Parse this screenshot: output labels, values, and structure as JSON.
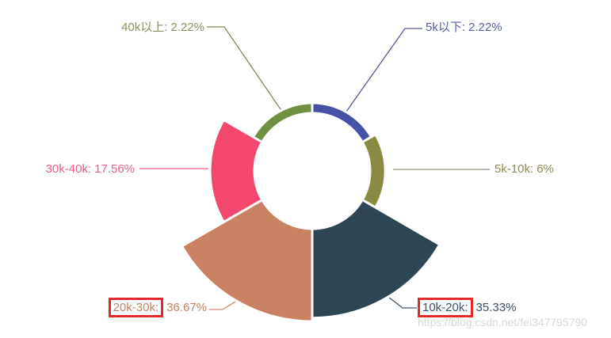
{
  "watermark": "https://blog.csdn.net/fei347795790",
  "annotations": {
    "red_box_color": "#e12a2a",
    "boxed_labels": [
      "10k-20k:",
      "20k-30k:"
    ]
  },
  "chart_data": {
    "type": "pie",
    "variant": "nightingale-rose (equal 60° sectors clockwise from top, outer radius proportional to value)",
    "title": "",
    "legend": "none",
    "inner_radius_px": 73,
    "max_radius_px": 190,
    "categories": [
      "5k以下",
      "5k-10k",
      "10k-20k",
      "20k-30k",
      "30k-40k",
      "40k以上"
    ],
    "values": [
      2.22,
      6,
      35.33,
      36.67,
      17.56,
      2.22
    ],
    "segments": [
      {
        "id": "5k-below",
        "name": "5k以下",
        "value": 2.22,
        "label_name": "5k以下:",
        "label_value": "2.22%",
        "color": "#4751a8",
        "label_color": "#5b5f9e",
        "line_color": "#575b9d",
        "boxed": false
      },
      {
        "id": "5k-10k",
        "name": "5k-10k",
        "value": 6,
        "label_name": "5k-10k:",
        "label_value": "6%",
        "color": "#8b8a42",
        "label_color": "#8e8c55",
        "line_color": "#94917b",
        "boxed": false
      },
      {
        "id": "10k-20k",
        "name": "10k-20k",
        "value": 35.33,
        "label_name": "10k-20k:",
        "label_value": "35.33%",
        "color": "#2e4554",
        "label_color": "#3c5164",
        "line_color": "#42566a",
        "boxed": true
      },
      {
        "id": "20k-30k",
        "name": "20k-30k",
        "value": 36.67,
        "label_name": "20k-30k:",
        "label_value": "36.67%",
        "color": "#cb8263",
        "label_color": "#c08367",
        "line_color": "#c88e70",
        "boxed": true
      },
      {
        "id": "30k-40k",
        "name": "30k-40k",
        "value": 17.56,
        "label_name": "30k-40k:",
        "label_value": "17.56%",
        "color": "#f2486e",
        "label_color": "#ec5e80",
        "line_color": "#ee6484",
        "boxed": false
      },
      {
        "id": "40k-plus",
        "name": "40k以上",
        "value": 2.22,
        "label_name": "40k以上:",
        "label_value": "2.22%",
        "color": "#6f9041",
        "label_color": "#8a9060",
        "line_color": "#7b8c55",
        "boxed": false
      }
    ]
  }
}
